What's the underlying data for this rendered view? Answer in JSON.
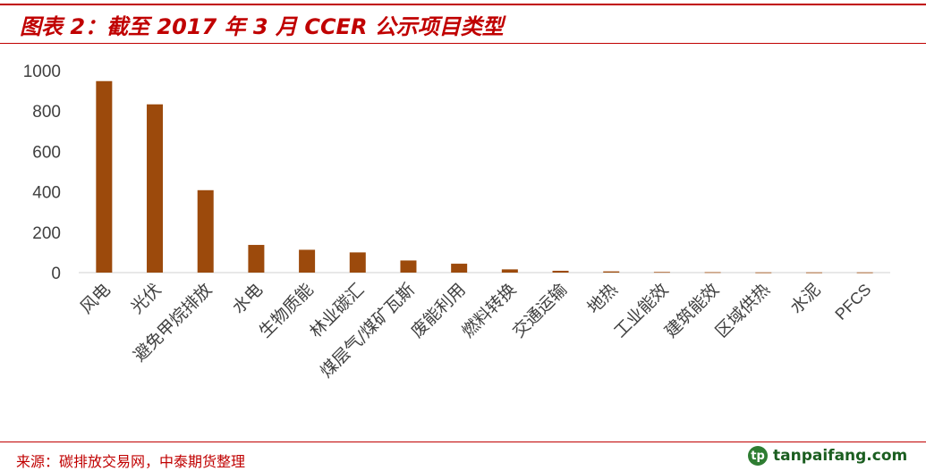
{
  "header": {
    "title": "图表 2：截至 2017 年 3 月 CCER 公示项目类型"
  },
  "footer": {
    "source": "来源：碳排放交易网，中泰期货整理",
    "brand": "tanpaifang.com",
    "brand_logo": "tp-logo-icon"
  },
  "colors": {
    "accent": "#c00000",
    "bar": "#9c4a0c",
    "brand": "#1b5e20"
  },
  "chart_data": {
    "type": "bar",
    "categories": [
      "风电",
      "光伏",
      "避免甲烷排放",
      "水电",
      "生物质能",
      "林业碳汇",
      "煤层气/煤矿瓦斯",
      "废能利用",
      "燃料转换",
      "交通运输",
      "地热",
      "工业能效",
      "建筑能效",
      "区域供热",
      "水泥",
      "PFCS"
    ],
    "values": [
      948,
      833,
      408,
      137,
      113,
      100,
      60,
      44,
      16,
      9,
      6,
      3,
      2,
      1,
      1,
      1
    ],
    "ylim": [
      0,
      1000
    ],
    "yticks": [
      0,
      200,
      400,
      600,
      800,
      1000
    ],
    "grid": false,
    "legend": "none"
  }
}
